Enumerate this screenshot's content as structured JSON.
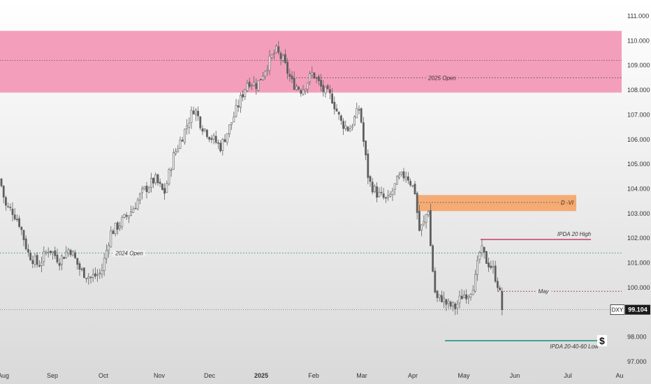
{
  "chart_data": {
    "type": "candlestick",
    "symbol": "DXY",
    "last_price": "99.104",
    "y_axis": {
      "ticks": [
        "97.000",
        "98.000",
        "99.104",
        "100.000",
        "101.000",
        "102.000",
        "103.000",
        "104.000",
        "105.000",
        "106.000",
        "107.000",
        "108.000",
        "109.000",
        "110.000",
        "111.000"
      ],
      "range": [
        96.7,
        111.4
      ]
    },
    "x_axis": {
      "labels": [
        "Aug",
        "Sep",
        "Oct",
        "Nov",
        "Dec",
        "2025",
        "Feb",
        "Mar",
        "Apr",
        "May",
        "Jun",
        "Jul",
        "Au"
      ],
      "bold_label": "2025"
    },
    "zones": [
      {
        "name": "premium-zone",
        "from": 107.9,
        "to": 110.4,
        "color": "#F29AB8"
      },
      {
        "name": "dvi-zone",
        "from": 103.1,
        "to": 103.75,
        "color": "#F5A86E"
      }
    ],
    "levels": [
      {
        "label": "2025 Open",
        "value": 108.5,
        "style": "dotted",
        "color": "#555555"
      },
      {
        "label": "2024 Open",
        "value": 101.4,
        "style": "dotted",
        "color": "#2A9D8F"
      },
      {
        "label": "D -VI",
        "value": 103.45,
        "style": "dotted",
        "color": "#555555"
      },
      {
        "label": "IPDA 20 High",
        "value": 101.95,
        "style": "solid",
        "color": "#C2185B"
      },
      {
        "label": "May",
        "value": 99.85,
        "style": "dotted",
        "color": "#8B1E3F"
      },
      {
        "label": "IPDA 20-40-60 Low",
        "value": 97.85,
        "style": "solid",
        "color": "#00897B"
      }
    ],
    "extra_marks": {
      "dollar": "$"
    },
    "reference_line": {
      "value": 99.104,
      "style": "dotted"
    },
    "grid": false,
    "colors": {
      "candle": "#5E5E5E",
      "background_top": "#FFFFFF",
      "background_bottom": "#D9D9D9",
      "axis_text": "#333333"
    },
    "path_anchors": [
      [
        0,
        104.4
      ],
      [
        8,
        103.3
      ],
      [
        18,
        103.1
      ],
      [
        28,
        102.6
      ],
      [
        40,
        101.4
      ],
      [
        55,
        100.9
      ],
      [
        70,
        101.6
      ],
      [
        85,
        101.1
      ],
      [
        100,
        101.6
      ],
      [
        115,
        100.7
      ],
      [
        130,
        100.4
      ],
      [
        145,
        100.6
      ],
      [
        158,
        102.2
      ],
      [
        172,
        102.6
      ],
      [
        188,
        103.1
      ],
      [
        205,
        103.9
      ],
      [
        222,
        104.4
      ],
      [
        235,
        103.8
      ],
      [
        248,
        105.3
      ],
      [
        262,
        106.2
      ],
      [
        278,
        107.3
      ],
      [
        288,
        106.6
      ],
      [
        302,
        106.1
      ],
      [
        316,
        105.7
      ],
      [
        330,
        106.6
      ],
      [
        344,
        107.6
      ],
      [
        355,
        108.4
      ],
      [
        368,
        108.2
      ],
      [
        380,
        108.9
      ],
      [
        395,
        109.6
      ],
      [
        405,
        109.2
      ],
      [
        418,
        108.3
      ],
      [
        432,
        108.0
      ],
      [
        448,
        108.7
      ],
      [
        462,
        108.0
      ],
      [
        475,
        107.7
      ],
      [
        488,
        106.7
      ],
      [
        500,
        106.4
      ],
      [
        515,
        107.3
      ],
      [
        520,
        106.0
      ],
      [
        528,
        104.3
      ],
      [
        540,
        103.8
      ],
      [
        555,
        103.5
      ],
      [
        570,
        104.4
      ],
      [
        582,
        104.6
      ],
      [
        594,
        103.9
      ],
      [
        600,
        102.3
      ],
      [
        607,
        102.6
      ],
      [
        613,
        103.3
      ],
      [
        617,
        101.4
      ],
      [
        624,
        99.5
      ],
      [
        632,
        99.6
      ],
      [
        640,
        99.3
      ],
      [
        652,
        99.2
      ],
      [
        662,
        99.7
      ],
      [
        672,
        99.8
      ],
      [
        680,
        100.3
      ],
      [
        688,
        101.6
      ],
      [
        696,
        101.1
      ],
      [
        705,
        100.8
      ],
      [
        713,
        100.1
      ],
      [
        720,
        99.1
      ]
    ]
  }
}
